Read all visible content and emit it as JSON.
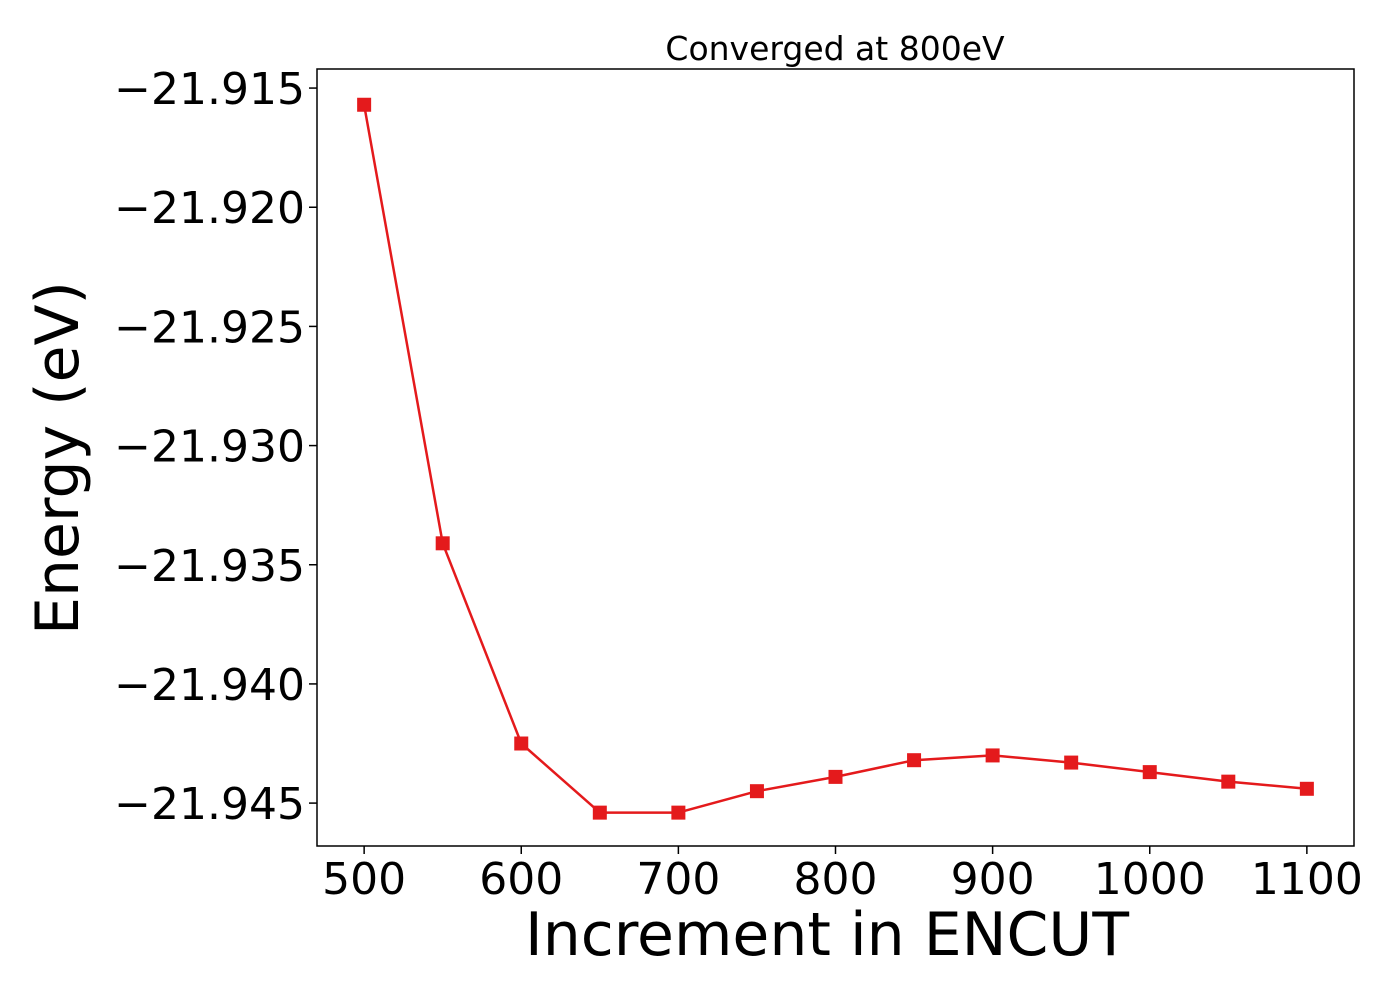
{
  "chart_data": {
    "type": "line",
    "title": "Converged at 800eV",
    "xlabel": "Increment in ENCUT",
    "ylabel": "Energy (eV)",
    "xlim": [
      470,
      1130
    ],
    "ylim": [
      -21.9468,
      -21.9142
    ],
    "xticks": [
      500,
      600,
      700,
      800,
      900,
      1000,
      1100
    ],
    "xtick_labels": [
      "500",
      "600",
      "700",
      "800",
      "900",
      "1000",
      "1100"
    ],
    "yticks": [
      -21.915,
      -21.92,
      -21.925,
      -21.93,
      -21.935,
      -21.94,
      -21.945
    ],
    "ytick_labels": [
      "−21.915",
      "−21.920",
      "−21.925",
      "−21.930",
      "−21.935",
      "−21.940",
      "−21.945"
    ],
    "grid": false,
    "series": [
      {
        "marker": "square",
        "color": "#e41a1c",
        "x": [
          500,
          550,
          600,
          650,
          700,
          750,
          800,
          850,
          900,
          950,
          1000,
          1050,
          1100
        ],
        "y": [
          -21.9157,
          -21.9341,
          -21.9425,
          -21.9454,
          -21.9454,
          -21.9445,
          -21.9439,
          -21.9432,
          -21.943,
          -21.9433,
          -21.9437,
          -21.9441,
          -21.9444
        ]
      }
    ]
  }
}
